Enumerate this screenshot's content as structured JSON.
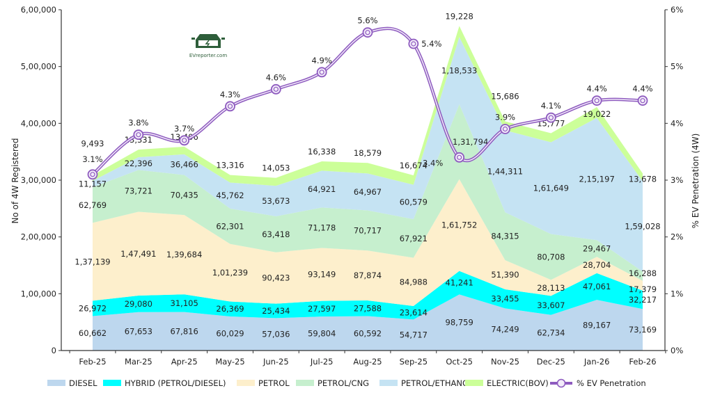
{
  "chart_data": {
    "type": "area",
    "stacked": true,
    "categories": [
      "Feb-25",
      "Mar-25",
      "Apr-25",
      "May-25",
      "Jun-25",
      "Jul-25",
      "Aug-25",
      "Sep-25",
      "Oct-25",
      "Nov-25",
      "Dec-25",
      "Jan-26",
      "Feb-26"
    ],
    "series": [
      {
        "name": "DIESEL",
        "color": "#bdd7ee",
        "values": [
          60662,
          67653,
          67816,
          60029,
          57036,
          59804,
          60592,
          54717,
          98759,
          74249,
          62734,
          89167,
          73169
        ],
        "labels": [
          "60,662",
          "67,653",
          "67,816",
          "60,029",
          "57,036",
          "59,804",
          "60,592",
          "54,717",
          "98,759",
          "74,249",
          "62,734",
          "89,167",
          "73,169"
        ]
      },
      {
        "name": "HYBRID (PETROL/DIESEL)",
        "color": "#00ffff",
        "values": [
          26972,
          29080,
          31105,
          26369,
          25434,
          27597,
          27588,
          23614,
          41241,
          33455,
          33607,
          47061,
          32217
        ],
        "labels": [
          "26,972",
          "29,080",
          "31,105",
          "26,369",
          "25,434",
          "27,597",
          "27,588",
          "23,614",
          "41,241",
          "33,455",
          "33,607",
          "47,061",
          "32,217"
        ]
      },
      {
        "name": "PETROL",
        "color": "#fdefcc",
        "values": [
          137139,
          147491,
          139684,
          101239,
          90423,
          93149,
          87874,
          84988,
          161752,
          51390,
          28113,
          28704,
          17379
        ],
        "labels": [
          "1,37,139",
          "1,47,491",
          "1,39,684",
          "1,01,239",
          "90,423",
          "93,149",
          "87,874",
          "84,988",
          "1,61,752",
          "51,390",
          "28,113",
          "28,704",
          "17,379"
        ]
      },
      {
        "name": "PETROL/CNG",
        "color": "#c6efce",
        "values": [
          62769,
          73721,
          70435,
          62301,
          63418,
          71178,
          70717,
          67921,
          131794,
          84315,
          80708,
          29467,
          16288
        ],
        "labels": [
          "62,769",
          "73,721",
          "70,435",
          "62,301",
          "63,418",
          "71,178",
          "70,717",
          "67,921",
          "1,31,794",
          "84,315",
          "80,708",
          "29,467",
          "16,288"
        ]
      },
      {
        "name": "PETROL/ETHANOL",
        "color": "#c5e3f3",
        "values": [
          11157,
          22396,
          36466,
          45762,
          53673,
          64921,
          64967,
          60579,
          118533,
          144311,
          161649,
          215197,
          159028
        ],
        "labels": [
          "11,157",
          "22,396",
          "36,466",
          "45,762",
          "53,673",
          "64,921",
          "64,967",
          "60,579",
          "1,18,533",
          "1,44,311",
          "1,61,649",
          "2,15,197",
          "1,59,028"
        ]
      },
      {
        "name": "ELECTRIC(BOV)",
        "color": "#ccff99",
        "values": [
          9493,
          13331,
          13406,
          13316,
          14053,
          16338,
          18579,
          16674,
          19228,
          15686,
          15777,
          19022,
          13678
        ],
        "labels": [
          "9,493",
          "13,331",
          "13,406",
          "13,316",
          "14,053",
          "16,338",
          "18,579",
          "16,674",
          "19,228",
          "15,686",
          "15,777",
          "19,022",
          "13,678"
        ]
      }
    ],
    "line_series": {
      "name": "% EV Penetration",
      "color": "#8e5bbf",
      "axis": "right",
      "values": [
        3.1,
        3.8,
        3.7,
        4.3,
        4.6,
        4.9,
        5.6,
        5.4,
        3.4,
        3.9,
        4.1,
        4.4,
        4.4
      ],
      "labels": [
        "3.1%",
        "3.8%",
        "3.7%",
        "4.3%",
        "4.6%",
        "4.9%",
        "5.6%",
        "5.4%",
        "3.4%",
        "3.9%",
        "4.1%",
        "4.4%",
        "4.4%"
      ]
    },
    "ylabel": "No of 4W Registered",
    "y2label": "% EV Penetration (4W)",
    "ylim": [
      0,
      600000
    ],
    "y2lim": [
      0,
      6
    ],
    "yticks": [
      "0",
      "1,00,000",
      "2,00,000",
      "3,00,000",
      "4,00,000",
      "5,00,000",
      "6,00,000"
    ],
    "y2ticks": [
      "0%",
      "1%",
      "2%",
      "3%",
      "4%",
      "5%",
      "6%"
    ],
    "legend_position": "bottom",
    "logo_text": "EVreporter.com"
  }
}
